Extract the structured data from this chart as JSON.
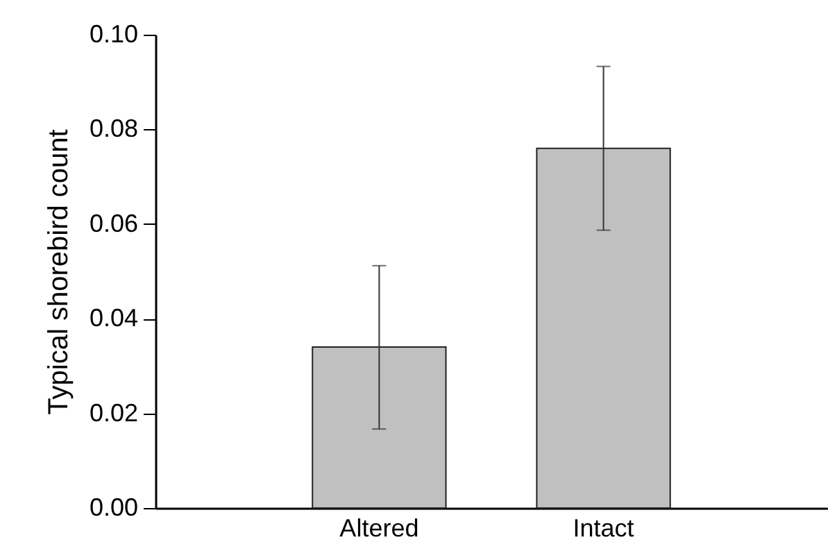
{
  "chart_data": {
    "type": "bar",
    "ylabel": "Typical shorebird count",
    "categories": [
      "Altered",
      "Intact"
    ],
    "values": [
      0.034,
      0.076
    ],
    "color": "#c0c0c0",
    "errors": [
      [
        0.0167,
        0.0512
      ],
      [
        0.0587,
        0.0933
      ]
    ],
    "ylim": [
      0,
      0.1
    ],
    "yticks": [
      {
        "value": 0,
        "label": "0.00"
      },
      {
        "value": 0.02,
        "label": "0.02"
      },
      {
        "value": 0.04,
        "label": "0.04"
      },
      {
        "value": 0.06,
        "label": "0.06"
      },
      {
        "value": 0.08,
        "label": "0.08"
      },
      {
        "value": 0.1,
        "label": "0.10"
      }
    ],
    "grid": false
  }
}
